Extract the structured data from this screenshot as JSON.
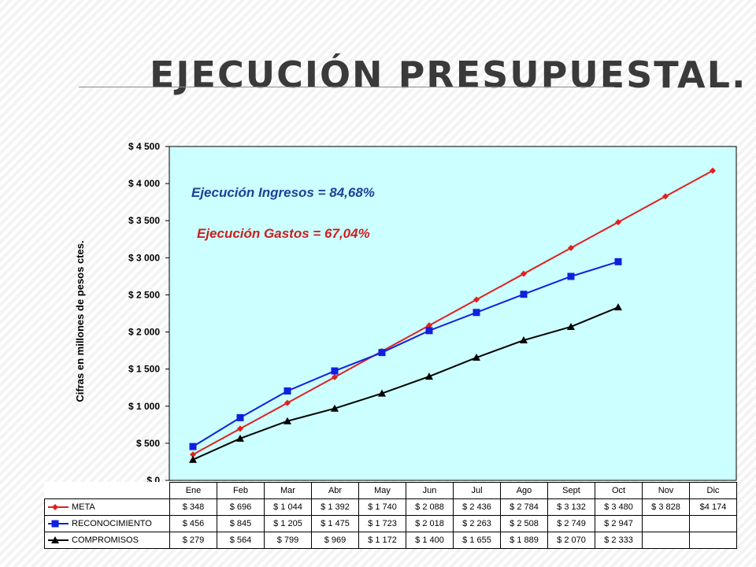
{
  "page": {
    "title": "Ejecución presupuestal."
  },
  "chart_data": {
    "type": "line",
    "title": "",
    "xlabel": "",
    "ylabel": "Cifras en millones de pesos ctes.",
    "categories": [
      "Ene",
      "Feb",
      "Mar",
      "Abr",
      "May",
      "Jun",
      "Jul",
      "Ago",
      "Sept",
      "Oct",
      "Nov",
      "Dic"
    ],
    "ylim": [
      0,
      4500
    ],
    "yticks": [
      0,
      500,
      1000,
      1500,
      2000,
      2500,
      3000,
      3500,
      4000,
      4500
    ],
    "ytick_labels": [
      "$ 0",
      "$ 500",
      "$ 1 000",
      "$ 1 500",
      "$ 2 000",
      "$ 2 500",
      "$ 3 000",
      "$ 3 500",
      "$ 4 000",
      "$ 4 500"
    ],
    "grid": false,
    "legend_placement": "data-table",
    "plot_background": "#ccffff",
    "annotations": [
      {
        "text": "Ejecución Ingresos =  84,68%",
        "color": "#1f3f9a"
      },
      {
        "text": "Ejecución Gastos =  67,04%",
        "color": "#cc1f1f"
      }
    ],
    "series": [
      {
        "name": "META",
        "color": "#e02020",
        "marker": "diamond",
        "values": [
          348,
          696,
          1044,
          1392,
          1740,
          2088,
          2436,
          2784,
          3132,
          3480,
          3828,
          4174
        ],
        "labels": [
          "$ 348",
          "$ 696",
          "$ 1 044",
          "$ 1 392",
          "$ 1 740",
          "$ 2 088",
          "$ 2 436",
          "$ 2 784",
          "$ 3 132",
          "$ 3 480",
          "$ 3 828",
          "$4 174"
        ]
      },
      {
        "name": "RECONOCIMIENTO",
        "color": "#1020e0",
        "marker": "square",
        "values": [
          456,
          845,
          1205,
          1475,
          1723,
          2018,
          2263,
          2508,
          2749,
          2947,
          null,
          null
        ],
        "labels": [
          "$ 456",
          "$ 845",
          "$ 1 205",
          "$ 1 475",
          "$ 1 723",
          "$ 2 018",
          "$ 2 263",
          "$ 2 508",
          "$ 2 749",
          "$ 2 947",
          "",
          ""
        ]
      },
      {
        "name": "COMPROMISOS",
        "color": "#000000",
        "marker": "triangle",
        "values": [
          279,
          564,
          799,
          969,
          1172,
          1400,
          1655,
          1889,
          2070,
          2333,
          null,
          null
        ],
        "labels": [
          "$ 279",
          "$ 564",
          "$ 799",
          "$ 969",
          "$ 1 172",
          "$ 1 400",
          "$ 1 655",
          "$ 1 889",
          "$ 2 070",
          "$ 2 333",
          "",
          ""
        ]
      }
    ]
  }
}
